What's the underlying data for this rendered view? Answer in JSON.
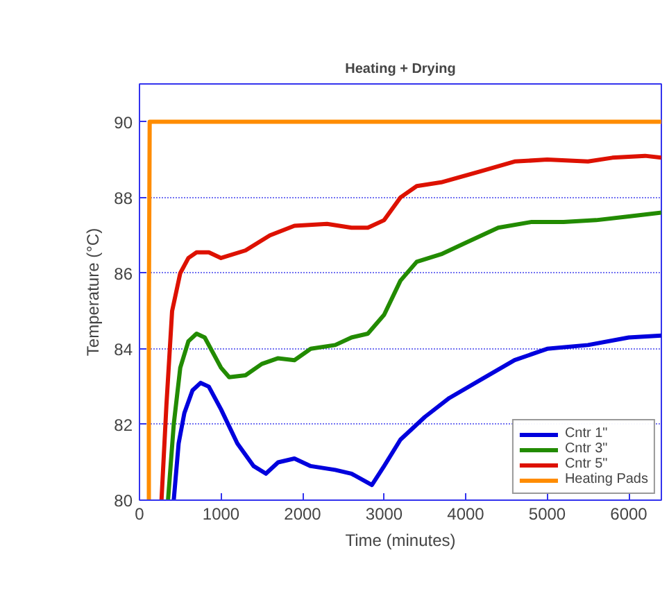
{
  "chart_data": {
    "type": "line",
    "title": "Heating + Drying",
    "xlabel": "Time (minutes)",
    "ylabel": "Temperature (°C)",
    "xlim": [
      0,
      6400
    ],
    "ylim": [
      80,
      91
    ],
    "xticks": [
      0,
      1000,
      2000,
      3000,
      4000,
      5000,
      6000
    ],
    "yticks": [
      80,
      82,
      84,
      86,
      88,
      90
    ],
    "grid": "y",
    "legend": "bottom right",
    "line_style": "solid",
    "series": [
      {
        "name": "Cntr 1\"",
        "color": "#0000dd",
        "x": [
          420,
          480,
          550,
          650,
          750,
          850,
          1000,
          1200,
          1400,
          1550,
          1700,
          1900,
          2100,
          2400,
          2600,
          2850,
          3000,
          3200,
          3500,
          3800,
          4200,
          4600,
          5000,
          5500,
          6000,
          6400
        ],
        "values": [
          80,
          81.5,
          82.3,
          82.9,
          83.1,
          83,
          82.4,
          81.5,
          80.9,
          80.7,
          81,
          81.1,
          80.9,
          80.8,
          80.7,
          80.4,
          80.9,
          81.6,
          82.2,
          82.7,
          83.2,
          83.7,
          84,
          84.1,
          84.3,
          84.35
        ]
      },
      {
        "name": "Cntr 3\"",
        "color": "#228b00",
        "x": [
          350,
          420,
          500,
          600,
          700,
          800,
          1000,
          1100,
          1300,
          1500,
          1700,
          1900,
          2100,
          2400,
          2600,
          2800,
          3000,
          3200,
          3400,
          3700,
          4000,
          4400,
          4800,
          5200,
          5600,
          6000,
          6400
        ],
        "values": [
          80,
          82,
          83.5,
          84.2,
          84.4,
          84.3,
          83.5,
          83.25,
          83.3,
          83.6,
          83.75,
          83.7,
          84,
          84.1,
          84.3,
          84.4,
          84.9,
          85.8,
          86.3,
          86.5,
          86.8,
          87.2,
          87.35,
          87.35,
          87.4,
          87.5,
          87.6
        ]
      },
      {
        "name": "Cntr 5\"",
        "color": "#dd1100",
        "x": [
          270,
          330,
          400,
          500,
          600,
          700,
          850,
          1000,
          1300,
          1600,
          1900,
          2300,
          2600,
          2800,
          3000,
          3200,
          3400,
          3700,
          4200,
          4600,
          5000,
          5500,
          5800,
          6200,
          6400
        ],
        "values": [
          80,
          82.5,
          85,
          86,
          86.4,
          86.55,
          86.55,
          86.4,
          86.6,
          87,
          87.25,
          87.3,
          87.2,
          87.2,
          87.4,
          88,
          88.3,
          88.4,
          88.7,
          88.95,
          89,
          88.95,
          89.05,
          89.1,
          89.05
        ]
      },
      {
        "name": "Heating Pads",
        "color": "#ff8c00",
        "x": [
          115,
          115,
          125,
          6400
        ],
        "values": [
          80,
          85,
          90,
          90
        ]
      }
    ]
  }
}
